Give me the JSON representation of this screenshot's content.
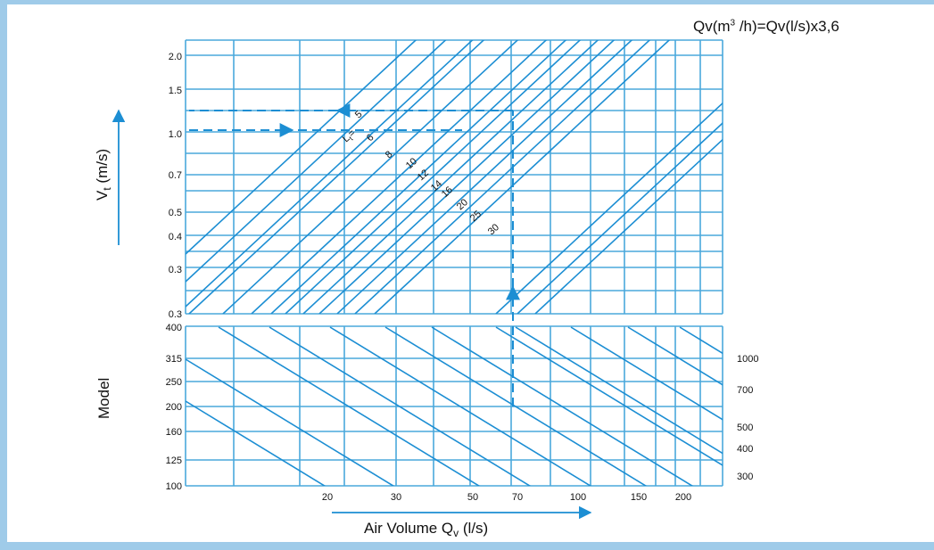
{
  "formula": {
    "lead": "Qv(m",
    "sup": "3",
    "tail": " /h)=Qv(l/s)x3,6"
  },
  "colors": {
    "grid": "#4aa8dc",
    "curve": "#1c8ed3",
    "guide": "#1c8ed3",
    "frame": "#9fcbe9",
    "text": "#111111"
  },
  "chart_data": [
    {
      "type": "line",
      "panel": "top",
      "ylabel_main": "V",
      "ylabel_sub": "t",
      "ylabel_unit": " (m/s)",
      "y_ticks": [
        "2.0",
        "1.5",
        "1.0",
        "0.7",
        "0.5",
        "0.4",
        "0.3",
        "0.3"
      ],
      "curve_label_prefix": "L",
      "curve_label_sub": "t",
      "curve_label_eq": "=",
      "series": [
        {
          "label": "5"
        },
        {
          "label": "6"
        },
        {
          "label": "8"
        },
        {
          "label": "10"
        },
        {
          "label": "12"
        },
        {
          "label": "14"
        },
        {
          "label": "16"
        },
        {
          "label": "20"
        },
        {
          "label": "25"
        },
        {
          "label": "30"
        },
        {
          "label": ""
        },
        {
          "label": ""
        },
        {
          "label": ""
        }
      ]
    },
    {
      "type": "line",
      "panel": "bottom",
      "ylabel": "Model",
      "y_ticks": [
        "400",
        "315",
        "250",
        "200",
        "160",
        "125",
        "100"
      ],
      "right_labels": [
        "1000",
        "700",
        "500",
        "400",
        "300"
      ],
      "x_ticks": [
        "20",
        "30",
        "50",
        "70",
        "100",
        "150",
        "200"
      ],
      "xlabel_main": "Air Volume Q",
      "xlabel_sub": "v",
      "xlabel_unit": " (l/s)"
    }
  ]
}
